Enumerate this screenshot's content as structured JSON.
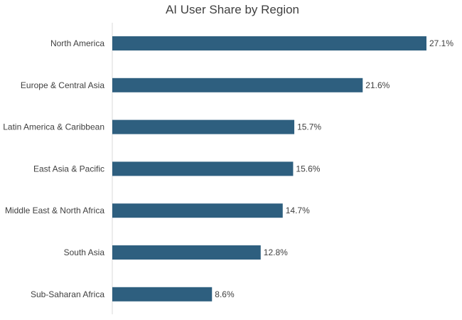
{
  "chart_data": {
    "type": "bar",
    "orientation": "horizontal",
    "title": "AI User Share by Region",
    "xlabel": "",
    "ylabel": "",
    "categories": [
      "North America",
      "Europe & Central Asia",
      "Latin America & Caribbean",
      "East Asia & Pacific",
      "Middle East & North Africa",
      "South Asia",
      "Sub-Saharan Africa"
    ],
    "values": [
      27.1,
      21.6,
      15.7,
      15.6,
      14.7,
      12.8,
      8.6
    ],
    "data_labels": [
      "27.1%",
      "21.6%",
      "15.7%",
      "15.6%",
      "14.7%",
      "12.8%",
      "8.6%"
    ],
    "unit": "%",
    "xlim": [
      0,
      27.1
    ],
    "grid": false,
    "legend": "none",
    "bar_color": "#2e5f7f"
  }
}
